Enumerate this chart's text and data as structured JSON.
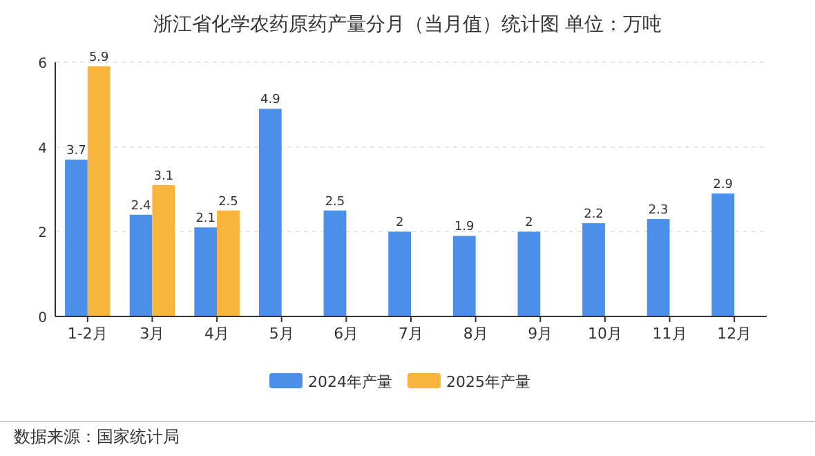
{
  "chart_data": {
    "type": "bar",
    "title": "浙江省化学农药原药产量分月（当月值）统计图  单位：万吨",
    "categories": [
      "1-2月",
      "3月",
      "4月",
      "5月",
      "6月",
      "7月",
      "8月",
      "9月",
      "10月",
      "11月",
      "12月"
    ],
    "series": [
      {
        "name": "2024年产量",
        "color": "#4a8fea",
        "values": [
          3.7,
          2.4,
          2.1,
          4.9,
          2.5,
          2,
          1.9,
          2,
          2.2,
          2.3,
          2.9
        ]
      },
      {
        "name": "2025年产量",
        "color": "#f9b53b",
        "values": [
          5.9,
          3.1,
          2.5,
          null,
          null,
          null,
          null,
          null,
          null,
          null,
          null
        ]
      }
    ],
    "ylim": [
      0,
      6
    ],
    "yticks": [
      0,
      2,
      4,
      6
    ],
    "grid": "y",
    "legend": "bottom",
    "data_labels": true,
    "annotations": [
      "数据来源：国家统计局"
    ]
  }
}
